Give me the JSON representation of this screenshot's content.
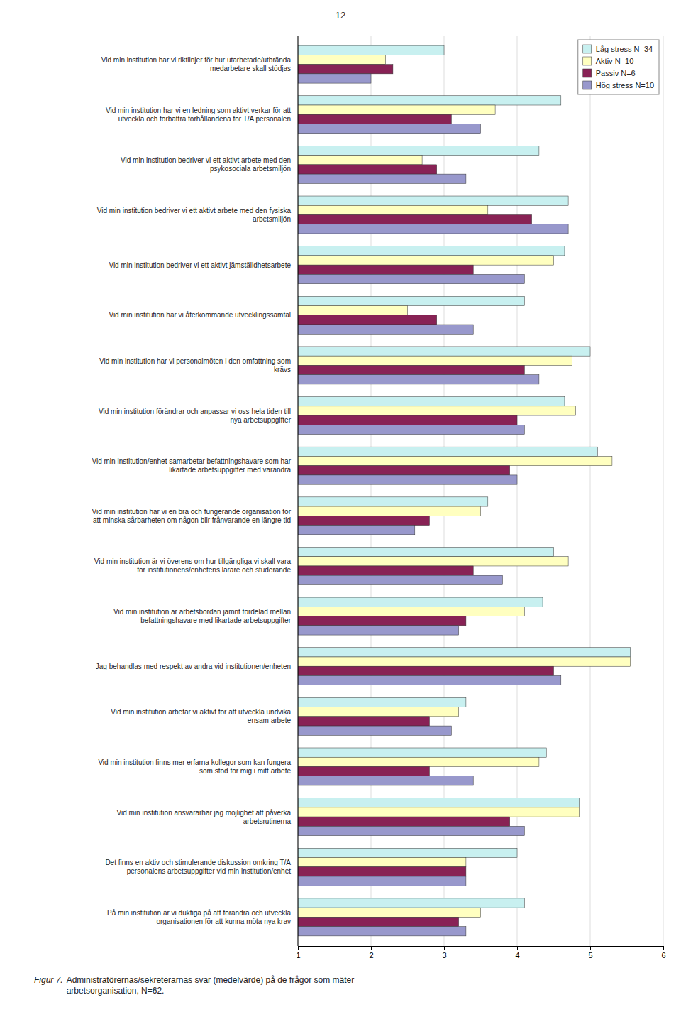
{
  "chart_data": {
    "type": "bar",
    "orientation": "horizontal",
    "categories": [
      "Vid min institution har vi riktlinjer för hur utarbetade/utbrända\nmedarbetare skall stödjas",
      "Vid min institution har vi en ledning som aktivt verkar för att\nutveckla och förbättra förhållandena för T/A personalen",
      "Vid min institution bedriver vi ett aktivt arbete med den\npsykosociala arbetsmiljön",
      "Vid min institution bedriver vi ett aktivt arbete med den fysiska\narbetsmiljön",
      "Vid min institution bedriver vi ett aktivt jämställdhetsarbete",
      "Vid min institution har vi återkommande utvecklingssamtal",
      "Vid min institution har vi personalmöten i den omfattning som\nkrävs",
      "Vid min institution förändrar och anpassar vi oss hela tiden till\nnya arbetsuppgifter",
      "Vid min institution/enhet samarbetar befattningshavare som har\nlikartade arbetsuppgifter med varandra",
      "Vid min institution har vi en bra och fungerande organisation för\natt minska sårbarheten om någon blir frånvarande en längre tid",
      "Vid min institution är vi överens om hur tillgängliga vi skall vara\nför institutionens/enhetens lärare och studerande",
      "Vid min institution är arbetsbördan jämnt fördelad mellan\nbefattningshavare med likartade arbetsuppgifter",
      "Jag behandlas med respekt av andra vid institutionen/enheten",
      "Vid min institution arbetar vi aktivt för att utveckla undvika\nensam arbete",
      "Vid min institution finns mer erfarna kollegor som kan fungera\nsom stöd för mig i mitt arbete",
      "Vid min institution ansvararhar jag möjlighet att påverka\narbetsrutinerna",
      "Det finns en aktiv och stimulerande diskussion omkring T/A\npersonalens arbetsuppgifter vid min institution/enhet",
      "På min institution är vi duktiga på att förändra och utveckla\norganisationen för att kunna möta nya krav"
    ],
    "series": [
      {
        "name": "Låg stress N=34",
        "color": "#c8f0f0",
        "values": [
          3.0,
          4.6,
          4.3,
          4.7,
          4.65,
          4.1,
          5.0,
          4.65,
          5.1,
          3.6,
          4.5,
          4.35,
          5.55,
          3.3,
          4.4,
          4.85,
          4.0,
          4.1
        ]
      },
      {
        "name": "Aktiv N=10",
        "color": "#ffffc0",
        "values": [
          2.2,
          3.7,
          2.7,
          3.6,
          4.5,
          2.5,
          4.75,
          4.8,
          5.3,
          3.5,
          4.7,
          4.1,
          5.55,
          3.2,
          4.3,
          4.85,
          3.3,
          3.5
        ]
      },
      {
        "name": "Passiv N=6",
        "color": "#882255",
        "values": [
          2.3,
          3.1,
          2.9,
          4.2,
          3.4,
          2.9,
          4.1,
          4.0,
          3.9,
          2.8,
          3.4,
          3.3,
          4.5,
          2.8,
          2.8,
          3.9,
          3.3,
          3.2
        ]
      },
      {
        "name": "Hög stress N=10",
        "color": "#9898cc",
        "values": [
          2.0,
          3.5,
          3.3,
          4.7,
          4.1,
          3.4,
          4.3,
          4.1,
          4.0,
          2.6,
          3.8,
          3.2,
          4.6,
          3.1,
          3.4,
          4.1,
          3.3,
          3.3
        ]
      }
    ],
    "xlim": [
      1,
      6
    ],
    "xticks": [
      1,
      2,
      3,
      4,
      5,
      6
    ],
    "grid": true,
    "legend": "upper right",
    "annotations": [
      "12",
      "Figur 7.",
      "Administratörernas/sekreterarnas svar (medelvärde) på de frågor som mäter\narbetsorganisation, N=62."
    ]
  }
}
